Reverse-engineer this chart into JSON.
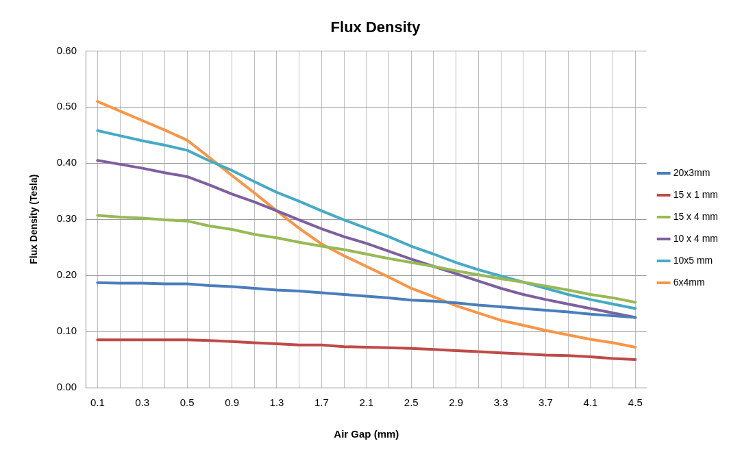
{
  "chart_data": {
    "type": "line",
    "title": "Flux Density",
    "xlabel": "Air Gap (mm)",
    "ylabel": "Flux Density (Tesla)",
    "categories": [
      "0.1",
      null,
      "0.3",
      null,
      "0.5",
      null,
      "0.9",
      null,
      "1.3",
      null,
      "1.7",
      null,
      "2.1",
      null,
      "2.5",
      null,
      "2.9",
      null,
      "3.3",
      null,
      "3.7",
      null,
      "4.1",
      null,
      "4.5"
    ],
    "series": [
      {
        "name": "20x3mm",
        "color": "#4a7ebb",
        "values": [
          0.187,
          0.186,
          0.186,
          0.185,
          0.185,
          0.182,
          0.18,
          0.177,
          0.174,
          0.172,
          0.169,
          0.166,
          0.163,
          0.16,
          0.156,
          0.154,
          0.151,
          0.147,
          0.144,
          0.141,
          0.138,
          0.135,
          0.131,
          0.128,
          0.125
        ]
      },
      {
        "name": "15 x 1 mm",
        "color": "#be4b48",
        "values": [
          0.085,
          0.085,
          0.085,
          0.085,
          0.085,
          0.084,
          0.082,
          0.08,
          0.078,
          0.076,
          0.076,
          0.073,
          0.072,
          0.071,
          0.07,
          0.068,
          0.066,
          0.064,
          0.062,
          0.06,
          0.058,
          0.057,
          0.055,
          0.052,
          0.05
        ]
      },
      {
        "name": "15 x 4 mm",
        "color": "#98b954",
        "values": [
          0.307,
          0.304,
          0.302,
          0.299,
          0.297,
          0.288,
          0.282,
          0.273,
          0.267,
          0.259,
          0.252,
          0.246,
          0.238,
          0.23,
          0.223,
          0.216,
          0.208,
          0.201,
          0.194,
          0.188,
          0.181,
          0.174,
          0.166,
          0.16,
          0.152
        ]
      },
      {
        "name": "10 x 4 mm",
        "color": "#7d60a0",
        "values": [
          0.405,
          0.398,
          0.391,
          0.383,
          0.376,
          0.361,
          0.345,
          0.331,
          0.315,
          0.299,
          0.283,
          0.269,
          0.257,
          0.243,
          0.229,
          0.216,
          0.203,
          0.19,
          0.177,
          0.166,
          0.157,
          0.149,
          0.141,
          0.133,
          0.125
        ]
      },
      {
        "name": "10x5 mm",
        "color": "#46aac5",
        "values": [
          0.458,
          0.449,
          0.44,
          0.432,
          0.423,
          0.404,
          0.387,
          0.367,
          0.348,
          0.332,
          0.315,
          0.299,
          0.284,
          0.269,
          0.252,
          0.238,
          0.223,
          0.21,
          0.199,
          0.188,
          0.177,
          0.166,
          0.157,
          0.149,
          0.141
        ]
      },
      {
        "name": "6x4mm",
        "color": "#f79646",
        "values": [
          0.51,
          0.493,
          0.476,
          0.459,
          0.441,
          0.41,
          0.378,
          0.347,
          0.315,
          0.284,
          0.256,
          0.235,
          0.216,
          0.197,
          0.177,
          0.162,
          0.146,
          0.133,
          0.12,
          0.111,
          0.102,
          0.094,
          0.086,
          0.08,
          0.072
        ]
      }
    ],
    "ylim": [
      0,
      0.6
    ],
    "yticks": [
      {
        "value": 0,
        "label": "0.00"
      },
      {
        "value": 0.1,
        "label": "0.10"
      },
      {
        "value": 0.2,
        "label": "0.20"
      },
      {
        "value": 0.3,
        "label": "0.30"
      },
      {
        "value": 0.4,
        "label": "0.40"
      },
      {
        "value": 0.5,
        "label": "0.50"
      },
      {
        "value": 0.6,
        "label": "0.60"
      }
    ],
    "grid": true,
    "legend": "right",
    "marker": "none",
    "line_style": "solid"
  }
}
